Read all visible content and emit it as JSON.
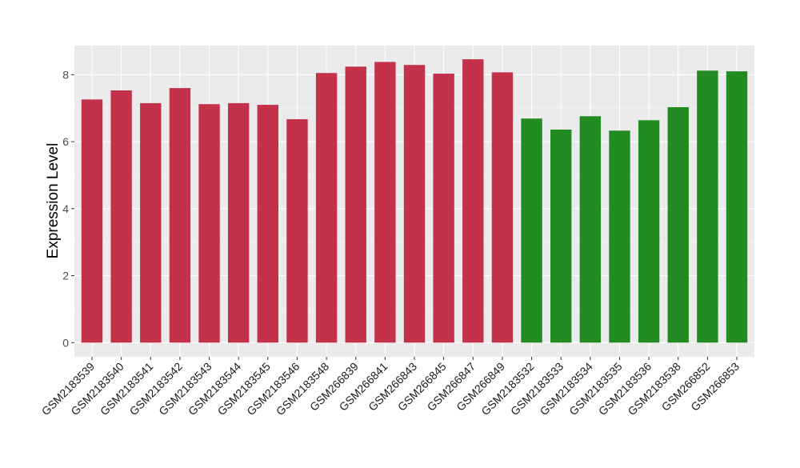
{
  "chart_data": {
    "type": "bar",
    "title": "",
    "xlabel": "",
    "ylabel": "Expression Level",
    "ylim": [
      0,
      8.85
    ],
    "yticks": [
      0,
      2,
      4,
      6,
      8
    ],
    "grid": true,
    "categories": [
      "GSM2183539",
      "GSM2183540",
      "GSM2183541",
      "GSM2183542",
      "GSM2183543",
      "GSM2183544",
      "GSM2183545",
      "GSM2183546",
      "GSM2183548",
      "GSM266839",
      "GSM266841",
      "GSM266843",
      "GSM266845",
      "GSM266847",
      "GSM266849",
      "GSM2183532",
      "GSM2183533",
      "GSM2183534",
      "GSM2183535",
      "GSM2183536",
      "GSM2183538",
      "GSM266852",
      "GSM266853"
    ],
    "values": [
      7.26,
      7.53,
      7.15,
      7.6,
      7.12,
      7.15,
      7.1,
      6.67,
      8.05,
      8.24,
      8.38,
      8.29,
      8.03,
      8.46,
      8.07,
      6.69,
      6.36,
      6.76,
      6.33,
      6.64,
      7.03,
      8.12,
      8.1
    ],
    "groups": [
      "a",
      "a",
      "a",
      "a",
      "a",
      "a",
      "a",
      "a",
      "a",
      "a",
      "a",
      "a",
      "a",
      "a",
      "a",
      "b",
      "b",
      "b",
      "b",
      "b",
      "b",
      "b",
      "b"
    ],
    "colors": {
      "a": "#C4314B",
      "b": "#228B22"
    }
  }
}
